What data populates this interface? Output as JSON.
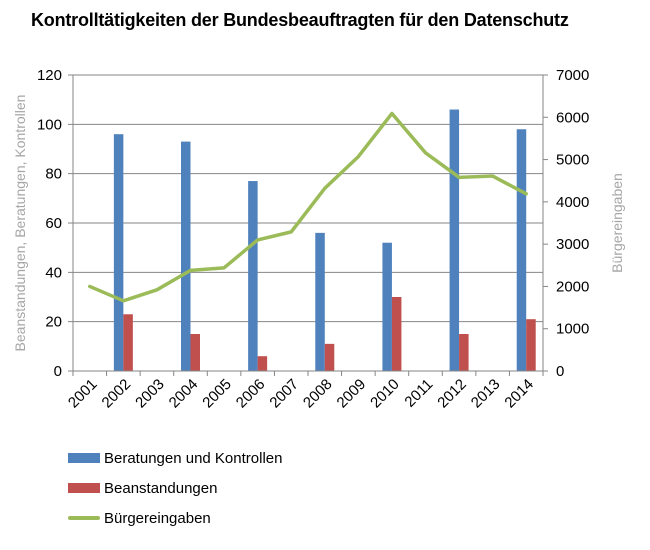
{
  "chart_data": {
    "type": "bar",
    "title": "Kontrolltätigkeiten der Bundesbeauftragten für den Datenschutz",
    "xlabel": "",
    "ylabel": "Beanstandungen, Beratungen, Kontrollen",
    "y2label": "Bürgereingaben",
    "ylim": [
      0,
      120
    ],
    "y2lim": [
      0,
      7000
    ],
    "yticks": [
      "0",
      "20",
      "40",
      "60",
      "80",
      "100",
      "120"
    ],
    "y2ticks": [
      "0",
      "1000",
      "2000",
      "3000",
      "4000",
      "5000",
      "6000",
      "7000"
    ],
    "grid": true,
    "legend_position": "bottom-left",
    "categories": [
      "2001",
      "2002",
      "2003",
      "2004",
      "2005",
      "2006",
      "2007",
      "2008",
      "2009",
      "2010",
      "2011",
      "2012",
      "2013",
      "2014"
    ],
    "series": [
      {
        "name": "Beratungen und Kontrollen",
        "type": "bar",
        "axis": "left",
        "color": "#4F81BD",
        "values": [
          null,
          96,
          null,
          93,
          null,
          77,
          null,
          56,
          null,
          52,
          null,
          106,
          null,
          98
        ]
      },
      {
        "name": "Beanstandungen",
        "type": "bar",
        "axis": "left",
        "color": "#C0504D",
        "values": [
          null,
          23,
          null,
          15,
          null,
          6,
          null,
          11,
          null,
          30,
          null,
          15,
          null,
          21
        ]
      },
      {
        "name": "Bürgereingaben",
        "type": "line",
        "axis": "right",
        "color": "#9BBB59",
        "values": [
          2000,
          1660,
          1920,
          2380,
          2440,
          3100,
          3290,
          4320,
          5070,
          6090,
          5160,
          4580,
          4610,
          4190
        ]
      }
    ]
  }
}
